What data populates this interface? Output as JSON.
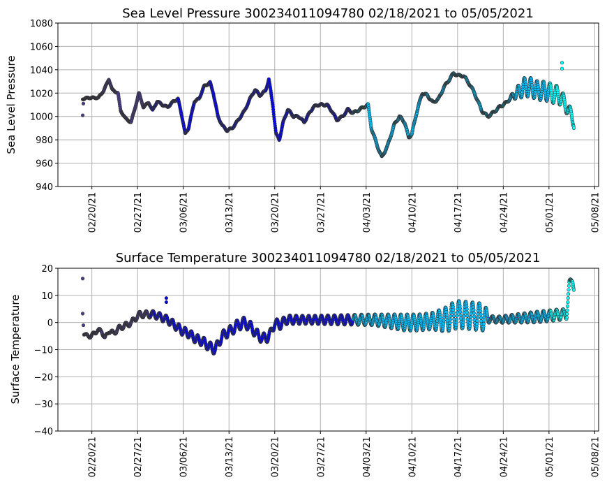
{
  "chart_data": [
    {
      "type": "scatter",
      "title": "Sea Level Pressure 300234011094780  02/18/2021 to 05/05/2021",
      "ylabel": "Sea Level Pressure",
      "xlabel": "",
      "x_units": "days since 02/18/2021",
      "ylim": [
        940,
        1080
      ],
      "xlim": [
        -3.2,
        79.6
      ],
      "yticks": [
        940,
        960,
        980,
        1000,
        1020,
        1040,
        1060,
        1080
      ],
      "xticks": [
        2,
        9,
        16,
        23,
        30,
        37,
        44,
        51,
        58,
        65,
        72,
        79
      ],
      "xtick_labels": [
        "02/20/21",
        "02/27/21",
        "03/06/21",
        "03/13/21",
        "03/20/21",
        "03/27/21",
        "04/03/21",
        "04/10/21",
        "04/17/21",
        "04/24/21",
        "05/01/21",
        "05/08/21"
      ],
      "grid": true,
      "series": [
        [
          0.6,
          1015
        ],
        [
          1.4,
          1016
        ],
        [
          3.0,
          1016
        ],
        [
          3.8,
          1022
        ],
        [
          4.6,
          1032
        ],
        [
          5.1,
          1023
        ],
        [
          6.0,
          1020
        ],
        [
          6.4,
          1005
        ],
        [
          7.2,
          998
        ],
        [
          8.0,
          995
        ],
        [
          8.5,
          1005
        ],
        [
          9.2,
          1020
        ],
        [
          9.9,
          1008
        ],
        [
          10.7,
          1012
        ],
        [
          11.3,
          1005
        ],
        [
          12.0,
          1013
        ],
        [
          12.8,
          1010
        ],
        [
          13.6,
          1008
        ],
        [
          14.5,
          1013
        ],
        [
          15.2,
          1015
        ],
        [
          15.8,
          1000
        ],
        [
          16.3,
          985
        ],
        [
          16.8,
          990
        ],
        [
          17.7,
          1013
        ],
        [
          18.4,
          1015
        ],
        [
          19.2,
          1026
        ],
        [
          20.1,
          1029
        ],
        [
          20.6,
          1020
        ],
        [
          21.3,
          1000
        ],
        [
          22.0,
          992
        ],
        [
          22.7,
          988
        ],
        [
          23.5,
          990
        ],
        [
          24.3,
          996
        ],
        [
          25.4,
          1005
        ],
        [
          26.2,
          1015
        ],
        [
          27.0,
          1023
        ],
        [
          27.7,
          1018
        ],
        [
          28.6,
          1022
        ],
        [
          29.1,
          1032
        ],
        [
          29.7,
          1010
        ],
        [
          30.2,
          985
        ],
        [
          30.7,
          980
        ],
        [
          31.3,
          995
        ],
        [
          32.0,
          1006
        ],
        [
          32.9,
          1000
        ],
        [
          33.7,
          1000
        ],
        [
          34.5,
          995
        ],
        [
          35.0,
          1000
        ],
        [
          35.9,
          1008
        ],
        [
          36.6,
          1010
        ],
        [
          38.0,
          1010
        ],
        [
          38.7,
          1005
        ],
        [
          39.5,
          997
        ],
        [
          40.4,
          1000
        ],
        [
          41.2,
          1006
        ],
        [
          42.0,
          1003
        ],
        [
          42.7,
          1005
        ],
        [
          43.6,
          1008
        ],
        [
          44.3,
          1010
        ],
        [
          44.8,
          990
        ],
        [
          45.7,
          975
        ],
        [
          46.4,
          965
        ],
        [
          47.3,
          975
        ],
        [
          48.3,
          993
        ],
        [
          49.1,
          1000
        ],
        [
          49.9,
          995
        ],
        [
          50.5,
          982
        ],
        [
          51.0,
          985
        ],
        [
          51.8,
          1005
        ],
        [
          52.6,
          1020
        ],
        [
          53.4,
          1018
        ],
        [
          54.2,
          1012
        ],
        [
          55.1,
          1015
        ],
        [
          55.9,
          1025
        ],
        [
          56.9,
          1033
        ],
        [
          57.4,
          1037
        ],
        [
          58.1,
          1035
        ],
        [
          58.9,
          1035
        ],
        [
          59.8,
          1028
        ],
        [
          60.6,
          1020
        ],
        [
          61.7,
          1005
        ],
        [
          62.6,
          1000
        ],
        [
          63.4,
          1003
        ],
        [
          64.4,
          1008
        ],
        [
          65.5,
          1012
        ],
        [
          66.3,
          1017
        ],
        [
          67.1,
          1020
        ],
        [
          68.1,
          1025
        ],
        [
          69.2,
          1025
        ],
        [
          70.3,
          1022
        ],
        [
          71.3,
          1022
        ],
        [
          72.4,
          1020
        ],
        [
          73.5,
          1018
        ],
        [
          74.0,
          1015
        ],
        [
          74.7,
          1008
        ],
        [
          75.4,
          1002
        ],
        [
          75.8,
          995
        ]
      ],
      "diurnal_amplitude": [
        [
          0,
          0.5
        ],
        [
          66,
          1
        ],
        [
          68,
          8
        ],
        [
          73,
          8
        ],
        [
          75,
          5
        ],
        [
          76,
          4
        ]
      ],
      "outliers": [
        [
          0.6,
          1001
        ],
        [
          0.7,
          1011
        ],
        [
          74.0,
          1046
        ],
        [
          74.0,
          1041
        ],
        [
          75.8,
          990
        ]
      ]
    },
    {
      "type": "scatter",
      "title": "Surface Temperature 300234011094780  02/18/2021 to 05/05/2021",
      "ylabel": "Surface Temperature",
      "xlabel": "",
      "x_units": "days since 02/18/2021",
      "ylim": [
        -40,
        20
      ],
      "xlim": [
        -3.2,
        79.6
      ],
      "yticks": [
        -40,
        -30,
        -20,
        -10,
        0,
        10,
        20
      ],
      "xticks": [
        2,
        9,
        16,
        23,
        30,
        37,
        44,
        51,
        58,
        65,
        72,
        79
      ],
      "xtick_labels": [
        "02/20/21",
        "02/27/21",
        "03/06/21",
        "03/13/21",
        "03/20/21",
        "03/27/21",
        "04/03/21",
        "04/10/21",
        "04/17/21",
        "04/24/21",
        "05/01/21",
        "05/08/21"
      ],
      "grid": true,
      "series": [
        [
          0.8,
          -4
        ],
        [
          1.3,
          -5
        ],
        [
          1.9,
          -5
        ],
        [
          2.8,
          -3
        ],
        [
          3.5,
          -3
        ],
        [
          4.0,
          -6
        ],
        [
          4.6,
          -3
        ],
        [
          5.3,
          -4
        ],
        [
          6.2,
          -2
        ],
        [
          7.2,
          -1
        ],
        [
          8.1,
          0
        ],
        [
          8.8,
          2
        ],
        [
          9.4,
          3
        ],
        [
          10.4,
          3
        ],
        [
          11.5,
          3
        ],
        [
          12.6,
          2
        ],
        [
          13.6,
          1
        ],
        [
          14.7,
          -1
        ],
        [
          15.8,
          -3
        ],
        [
          16.8,
          -4
        ],
        [
          17.9,
          -6
        ],
        [
          19.0,
          -7
        ],
        [
          20.1,
          -9
        ],
        [
          20.9,
          -10
        ],
        [
          21.7,
          -6
        ],
        [
          22.4,
          -4
        ],
        [
          23.3,
          -3
        ],
        [
          24.3,
          -1
        ],
        [
          25.4,
          0
        ],
        [
          26.5,
          -2
        ],
        [
          27.5,
          -5
        ],
        [
          28.6,
          -6
        ],
        [
          29.4,
          -4
        ],
        [
          30.0,
          0
        ],
        [
          30.7,
          -1
        ],
        [
          31.8,
          1
        ],
        [
          35,
          1
        ],
        [
          45,
          1
        ],
        [
          50,
          0
        ],
        [
          52,
          0
        ],
        [
          56,
          1
        ],
        [
          58,
          3
        ],
        [
          62,
          2
        ],
        [
          64,
          1
        ],
        [
          70,
          2
        ],
        [
          74,
          3
        ],
        [
          74.7,
          3
        ],
        [
          75.1,
          14
        ],
        [
          75.6,
          16
        ],
        [
          75.8,
          13
        ]
      ],
      "diurnal_amplitude": [
        [
          0,
          0.5
        ],
        [
          15,
          1.5
        ],
        [
          25,
          2
        ],
        [
          35,
          1.5
        ],
        [
          45,
          2
        ],
        [
          50,
          3
        ],
        [
          54,
          3
        ],
        [
          57,
          5
        ],
        [
          62,
          5
        ],
        [
          63,
          1
        ],
        [
          70,
          2
        ],
        [
          74,
          2
        ],
        [
          76,
          1
        ]
      ],
      "outliers": [
        [
          0.6,
          16.2
        ],
        [
          0.6,
          3.3
        ],
        [
          0.7,
          -1
        ],
        [
          13.4,
          9
        ],
        [
          13.4,
          7.5
        ]
      ]
    }
  ],
  "month_colors": {
    "feb": "#483d8b",
    "mar": "#0000ff",
    "apr": "#00bfff",
    "may": "#00ffff"
  },
  "month_start_days": {
    "mar": 11,
    "apr": 42,
    "may": 72
  }
}
